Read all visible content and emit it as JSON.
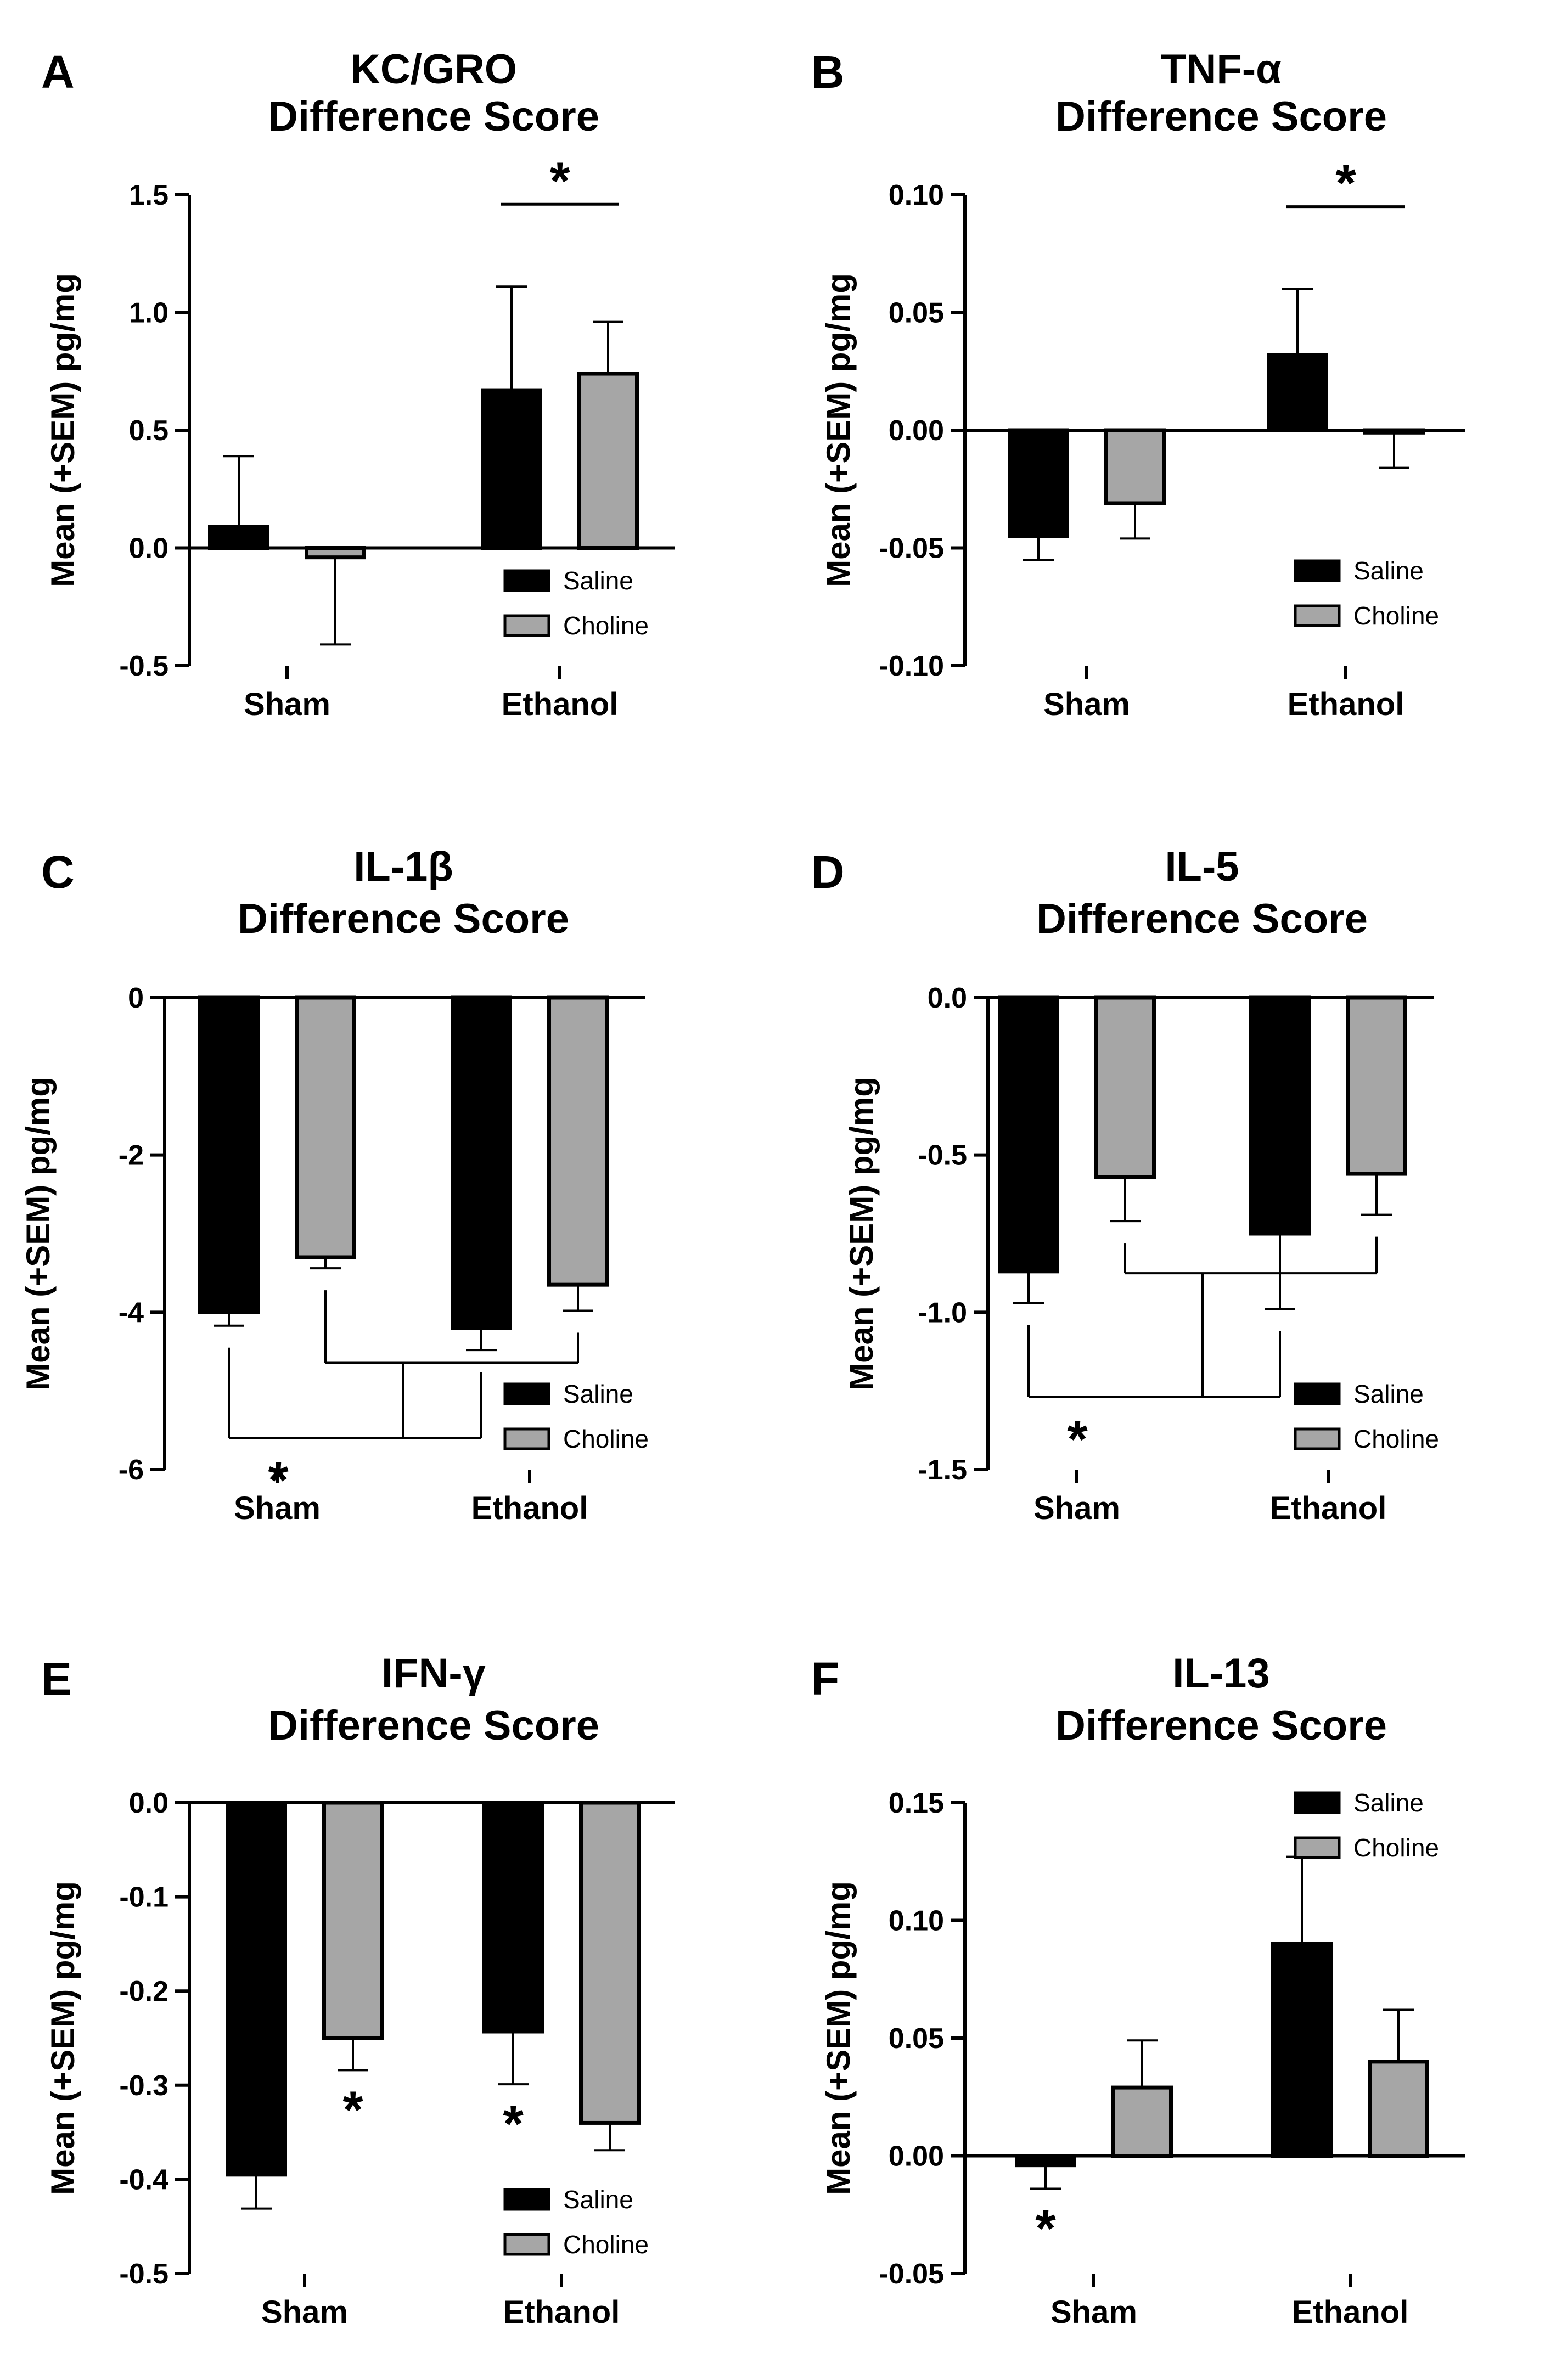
{
  "chart_data": [
    {
      "panel": "A",
      "type": "bar",
      "title": "KC/GRO",
      "subtitle": "Difference Score",
      "ylabel": "Mean (+SEM) pg/mg",
      "xlabel": "",
      "categories": [
        "Sham",
        "Ethanol"
      ],
      "ylim": [
        -0.5,
        1.5
      ],
      "yticks": [
        -0.5,
        0.0,
        0.5,
        1.0,
        1.5
      ],
      "ytick_labels": [
        "-0.5",
        "0.0",
        "0.5",
        "1.0",
        "1.5"
      ],
      "legend": [
        "Saline",
        "Choline"
      ],
      "legend_position": "bottom-right",
      "series": [
        {
          "name": "Saline",
          "color": "#000000",
          "values": [
            0.09,
            0.67
          ],
          "errors": [
            0.3,
            0.44
          ]
        },
        {
          "name": "Choline",
          "color": "#a6a6a6",
          "values": [
            -0.04,
            0.74
          ],
          "errors": [
            0.37,
            0.22
          ]
        }
      ],
      "annotations": [
        {
          "label": "*",
          "kind": "pair",
          "group": 1
        }
      ]
    },
    {
      "panel": "B",
      "type": "bar",
      "title": "TNF-α",
      "subtitle": "Difference Score",
      "ylabel": "Mean (+SEM) pg/mg",
      "xlabel": "",
      "categories": [
        "Sham",
        "Ethanol"
      ],
      "ylim": [
        -0.1,
        0.1
      ],
      "yticks": [
        -0.1,
        -0.05,
        0.0,
        0.05,
        0.1
      ],
      "ytick_labels": [
        "-0.10",
        "-0.05",
        "0.00",
        "0.05",
        "0.10"
      ],
      "legend": [
        "Saline",
        "Choline"
      ],
      "legend_position": "bottom-right",
      "series": [
        {
          "name": "Saline",
          "color": "#000000",
          "values": [
            -0.045,
            0.032
          ],
          "errors": [
            0.01,
            0.028
          ]
        },
        {
          "name": "Choline",
          "color": "#a6a6a6",
          "values": [
            -0.031,
            -0.001
          ],
          "errors": [
            0.015,
            0.015
          ]
        }
      ],
      "annotations": [
        {
          "label": "*",
          "kind": "pair",
          "group": 1
        }
      ]
    },
    {
      "panel": "C",
      "type": "bar",
      "title": "IL-1β",
      "subtitle": "Difference Score",
      "ylabel": "Mean (+SEM) pg/mg",
      "xlabel": "",
      "categories": [
        "Sham",
        "Ethanol"
      ],
      "ylim": [
        -6,
        0
      ],
      "yticks": [
        -6,
        -4,
        -2,
        0
      ],
      "ytick_labels": [
        "-6",
        "-4",
        "-2",
        "0"
      ],
      "legend": [
        "Saline",
        "Choline"
      ],
      "legend_position": "bottom-right",
      "series": [
        {
          "name": "Saline",
          "color": "#000000",
          "values": [
            -4.0,
            -4.2
          ],
          "errors": [
            0.17,
            0.28
          ]
        },
        {
          "name": "Choline",
          "color": "#a6a6a6",
          "values": [
            -3.3,
            -3.65
          ],
          "errors": [
            0.14,
            0.33
          ]
        }
      ],
      "annotations": [
        {
          "label": "*",
          "kind": "main-effect"
        }
      ]
    },
    {
      "panel": "D",
      "type": "bar",
      "title": "IL-5",
      "subtitle": "Difference Score",
      "ylabel": "Mean (+SEM) pg/mg",
      "xlabel": "",
      "categories": [
        "Sham",
        "Ethanol"
      ],
      "ylim": [
        -1.5,
        0.0
      ],
      "yticks": [
        -1.5,
        -1.0,
        -0.5,
        0.0
      ],
      "ytick_labels": [
        "-1.5",
        "-1.0",
        "-0.5",
        "0.0"
      ],
      "legend": [
        "Saline",
        "Choline"
      ],
      "legend_position": "bottom-right",
      "series": [
        {
          "name": "Saline",
          "color": "#000000",
          "values": [
            -0.87,
            -0.75
          ],
          "errors": [
            0.1,
            0.24
          ]
        },
        {
          "name": "Choline",
          "color": "#a6a6a6",
          "values": [
            -0.57,
            -0.56
          ],
          "errors": [
            0.14,
            0.13
          ]
        }
      ],
      "annotations": [
        {
          "label": "*",
          "kind": "main-effect"
        }
      ]
    },
    {
      "panel": "E",
      "type": "bar",
      "title": "IFN-γ",
      "subtitle": "Difference Score",
      "ylabel": "Mean (+SEM) pg/mg",
      "xlabel": "",
      "categories": [
        "Sham",
        "Ethanol"
      ],
      "ylim": [
        -0.5,
        0.0
      ],
      "yticks": [
        -0.5,
        -0.4,
        -0.3,
        -0.2,
        -0.1,
        0.0
      ],
      "ytick_labels": [
        "-0.5",
        "-0.4",
        "-0.3",
        "-0.2",
        "-0.1",
        "0.0"
      ],
      "legend": [
        "Saline",
        "Choline"
      ],
      "legend_position": "bottom-right",
      "series": [
        {
          "name": "Saline",
          "color": "#000000",
          "values": [
            -0.395,
            -0.243
          ],
          "errors": [
            0.036,
            0.056
          ]
        },
        {
          "name": "Choline",
          "color": "#a6a6a6",
          "values": [
            -0.25,
            -0.34
          ],
          "errors": [
            0.034,
            0.029
          ]
        }
      ],
      "annotations": [
        {
          "label": "*",
          "kind": "bar",
          "series": 1,
          "group": 0
        },
        {
          "label": "*",
          "kind": "bar",
          "series": 0,
          "group": 1
        }
      ]
    },
    {
      "panel": "F",
      "type": "bar",
      "title": "IL-13",
      "subtitle": "Difference Score",
      "ylabel": "Mean (+SEM) pg/mg",
      "xlabel": "",
      "categories": [
        "Sham",
        "Ethanol"
      ],
      "ylim": [
        -0.05,
        0.15
      ],
      "yticks": [
        -0.05,
        0.0,
        0.05,
        0.1,
        0.15
      ],
      "ytick_labels": [
        "-0.05",
        "0.00",
        "0.05",
        "0.10",
        "0.15"
      ],
      "legend": [
        "Saline",
        "Choline"
      ],
      "legend_position": "top-right",
      "series": [
        {
          "name": "Saline",
          "color": "#000000",
          "values": [
            -0.004,
            0.09
          ],
          "errors": [
            0.01,
            0.037
          ]
        },
        {
          "name": "Choline",
          "color": "#a6a6a6",
          "values": [
            0.029,
            0.04
          ],
          "errors": [
            0.02,
            0.022
          ]
        }
      ],
      "annotations": [
        {
          "label": "*",
          "kind": "bar",
          "series": 0,
          "group": 0
        }
      ]
    }
  ]
}
